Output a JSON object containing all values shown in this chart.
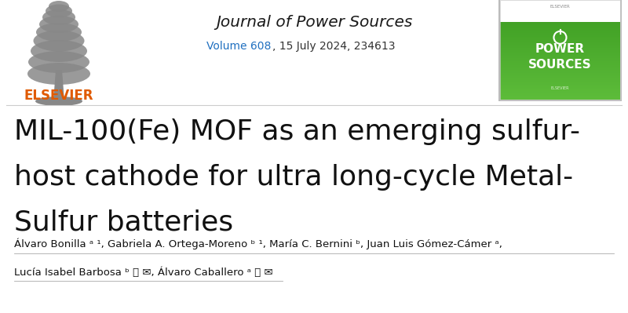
{
  "background_color": "#ffffff",
  "header_line_color": "#cccccc",
  "journal_name": "Journal of Power Sources",
  "journal_name_color": "#1a1a1a",
  "journal_name_fontsize": 14.5,
  "volume_text_colored": "Volume 608",
  "volume_text_plain": ", 15 July 2024, 234613",
  "volume_color": "#2070c0",
  "volume_plain_color": "#333333",
  "volume_fontsize": 10,
  "elsevier_color": "#e05a00",
  "elsevier_text": "ELSEVIER",
  "elsevier_fontsize": 12,
  "title_line1": "MIL-100(Fe) MOF as an emerging sulfur-",
  "title_line2": "host cathode for ultra long-cycle Metal-",
  "title_line3": "Sulfur batteries",
  "title_color": "#111111",
  "title_fontsize": 26,
  "title_fontweight": "normal",
  "authors_line1": "Álvaro Bonilla ᵃ ¹, Gabriela A. Ortega-Moreno ᵇ ¹, María C. Bernini ᵇ, Juan Luis Gómez-Cámer ᵃ,",
  "authors_line2": "Lucía Isabel Barbosa ᵇ 👤 ✉, Álvaro Caballero ᵃ 👤 ✉",
  "authors_color": "#111111",
  "authors_fontsize": 9.5,
  "cover_green_light": "#5dbc3a",
  "cover_green_dark": "#3a9a20",
  "cover_border_color": "#cccccc"
}
